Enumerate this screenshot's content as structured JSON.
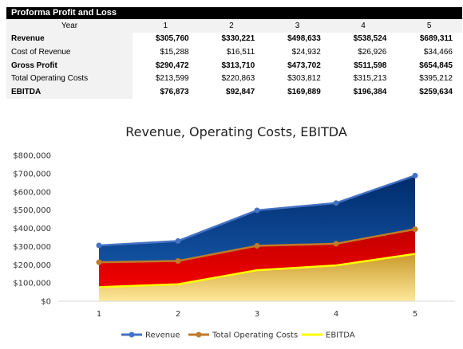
{
  "table": {
    "title": "Proforma Profit and Loss",
    "header_label": "Year",
    "years": [
      "1",
      "2",
      "3",
      "4",
      "5"
    ],
    "rows": [
      {
        "label": "Revenue",
        "bold": true,
        "values": [
          "$305,760",
          "$330,221",
          "$498,633",
          "$538,524",
          "$689,311"
        ]
      },
      {
        "label": "Cost of Revenue",
        "bold": false,
        "values": [
          "$15,288",
          "$16,511",
          "$24,932",
          "$26,926",
          "$34,466"
        ]
      },
      {
        "label": "Gross Profit",
        "bold": true,
        "values": [
          "$290,472",
          "$313,710",
          "$473,702",
          "$511,598",
          "$654,845"
        ]
      },
      {
        "label": "Total Operating Costs",
        "bold": false,
        "values": [
          "$213,599",
          "$220,863",
          "$303,812",
          "$315,213",
          "$395,212"
        ]
      },
      {
        "label": "EBITDA",
        "bold": true,
        "values": [
          "$76,873",
          "$92,847",
          "$169,889",
          "$196,384",
          "$259,634"
        ]
      }
    ]
  },
  "chart_data": {
    "type": "area",
    "title": "Revenue, Operating Costs, EBITDA",
    "categories": [
      "1",
      "2",
      "3",
      "4",
      "5"
    ],
    "y_ticks": [
      "$0",
      "$100,000",
      "$200,000",
      "$300,000",
      "$400,000",
      "$500,000",
      "$600,000",
      "$700,000",
      "$800,000"
    ],
    "ylim": [
      0,
      800000
    ],
    "grid": false,
    "legend_position": "bottom",
    "series": [
      {
        "name": "Revenue",
        "values": [
          305760,
          330221,
          498633,
          538524,
          689311
        ],
        "line_color": "#4472c4",
        "fill": "blue-gradient"
      },
      {
        "name": "Total Operating Costs",
        "values": [
          213599,
          220863,
          303812,
          315213,
          395212
        ],
        "line_color": "#c07a28",
        "fill": "red-gradient"
      },
      {
        "name": "EBITDA",
        "values": [
          76873,
          92847,
          169889,
          196384,
          259634
        ],
        "line_color": "#ffff00",
        "fill": "gold-gradient"
      }
    ]
  }
}
